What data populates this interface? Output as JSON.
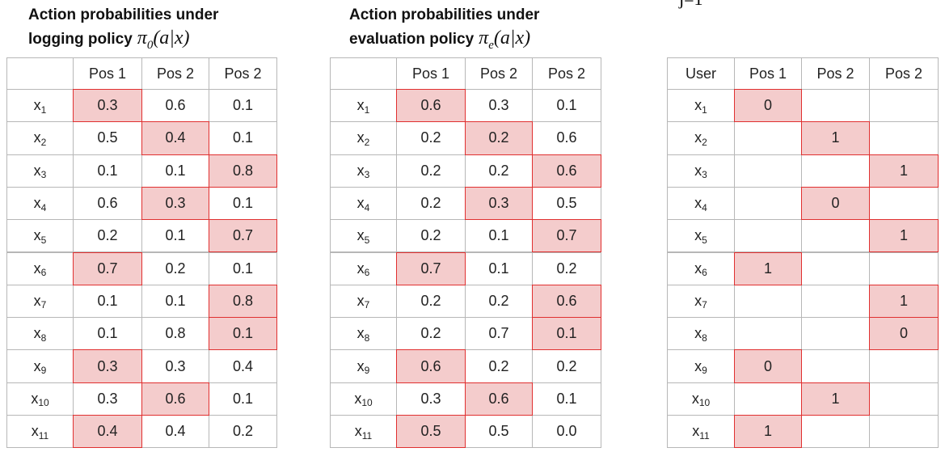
{
  "formula_fragment": "j=1",
  "tables": [
    {
      "title_line1": "Action probabilities under",
      "title_line2": "logging policy",
      "policy_symbol": "π",
      "policy_sub": "0",
      "policy_args": "(a|x)",
      "header": [
        null,
        "Pos 1",
        "Pos 2",
        "Pos 2"
      ],
      "highlight_columns": [
        0,
        1,
        2,
        1,
        2,
        0,
        2,
        2,
        0,
        1,
        0
      ],
      "rows": [
        {
          "name": "x",
          "index": "1",
          "cells": [
            "0.3",
            "0.6",
            "0.1"
          ]
        },
        {
          "name": "x",
          "index": "2",
          "cells": [
            "0.5",
            "0.4",
            "0.1"
          ]
        },
        {
          "name": "x",
          "index": "3",
          "cells": [
            "0.1",
            "0.1",
            "0.8"
          ]
        },
        {
          "name": "x",
          "index": "4",
          "cells": [
            "0.6",
            "0.3",
            "0.1"
          ]
        },
        {
          "name": "x",
          "index": "5",
          "cells": [
            "0.2",
            "0.1",
            "0.7"
          ]
        },
        {
          "name": "x",
          "index": "6",
          "cells": [
            "0.7",
            "0.2",
            "0.1"
          ]
        },
        {
          "name": "x",
          "index": "7",
          "cells": [
            "0.1",
            "0.1",
            "0.8"
          ]
        },
        {
          "name": "x",
          "index": "8",
          "cells": [
            "0.1",
            "0.8",
            "0.1"
          ]
        },
        {
          "name": "x",
          "index": "9",
          "cells": [
            "0.3",
            "0.3",
            "0.4"
          ]
        },
        {
          "name": "x",
          "index": "10",
          "cells": [
            "0.3",
            "0.6",
            "0.1"
          ]
        },
        {
          "name": "x",
          "index": "11",
          "cells": [
            "0.4",
            "0.4",
            "0.2"
          ]
        }
      ]
    },
    {
      "title_line1": "Action probabilities under",
      "title_line2": "evaluation policy",
      "policy_symbol": "π",
      "policy_sub": "e",
      "policy_args": "(a|x)",
      "header": [
        null,
        "Pos 1",
        "Pos 2",
        "Pos 2"
      ],
      "highlight_columns": [
        0,
        1,
        2,
        1,
        2,
        0,
        2,
        2,
        0,
        1,
        0
      ],
      "rows": [
        {
          "name": "x",
          "index": "1",
          "cells": [
            "0.6",
            "0.3",
            "0.1"
          ]
        },
        {
          "name": "x",
          "index": "2",
          "cells": [
            "0.2",
            "0.2",
            "0.6"
          ]
        },
        {
          "name": "x",
          "index": "3",
          "cells": [
            "0.2",
            "0.2",
            "0.6"
          ]
        },
        {
          "name": "x",
          "index": "4",
          "cells": [
            "0.2",
            "0.3",
            "0.5"
          ]
        },
        {
          "name": "x",
          "index": "5",
          "cells": [
            "0.2",
            "0.1",
            "0.7"
          ]
        },
        {
          "name": "x",
          "index": "6",
          "cells": [
            "0.7",
            "0.1",
            "0.2"
          ]
        },
        {
          "name": "x",
          "index": "7",
          "cells": [
            "0.2",
            "0.2",
            "0.6"
          ]
        },
        {
          "name": "x",
          "index": "8",
          "cells": [
            "0.2",
            "0.7",
            "0.1"
          ]
        },
        {
          "name": "x",
          "index": "9",
          "cells": [
            "0.6",
            "0.2",
            "0.2"
          ]
        },
        {
          "name": "x",
          "index": "10",
          "cells": [
            "0.3",
            "0.6",
            "0.1"
          ]
        },
        {
          "name": "x",
          "index": "11",
          "cells": [
            "0.5",
            "0.5",
            "0.0"
          ]
        }
      ]
    },
    {
      "header": [
        "User",
        "Pos 1",
        "Pos 2",
        "Pos 2"
      ],
      "highlight_columns": [
        0,
        1,
        2,
        1,
        2,
        0,
        2,
        2,
        0,
        1,
        0
      ],
      "rows": [
        {
          "name": "x",
          "index": "1",
          "cells": [
            "0",
            null,
            null
          ]
        },
        {
          "name": "x",
          "index": "2",
          "cells": [
            null,
            "1",
            null
          ]
        },
        {
          "name": "x",
          "index": "3",
          "cells": [
            null,
            null,
            "1"
          ]
        },
        {
          "name": "x",
          "index": "4",
          "cells": [
            null,
            "0",
            null
          ]
        },
        {
          "name": "x",
          "index": "5",
          "cells": [
            null,
            null,
            "1"
          ]
        },
        {
          "name": "x",
          "index": "6",
          "cells": [
            "1",
            null,
            null
          ]
        },
        {
          "name": "x",
          "index": "7",
          "cells": [
            null,
            null,
            "1"
          ]
        },
        {
          "name": "x",
          "index": "8",
          "cells": [
            null,
            null,
            "0"
          ]
        },
        {
          "name": "x",
          "index": "9",
          "cells": [
            "0",
            null,
            null
          ]
        },
        {
          "name": "x",
          "index": "10",
          "cells": [
            null,
            "1",
            null
          ]
        },
        {
          "name": "x",
          "index": "11",
          "cells": [
            "1",
            null,
            null
          ]
        }
      ]
    }
  ]
}
